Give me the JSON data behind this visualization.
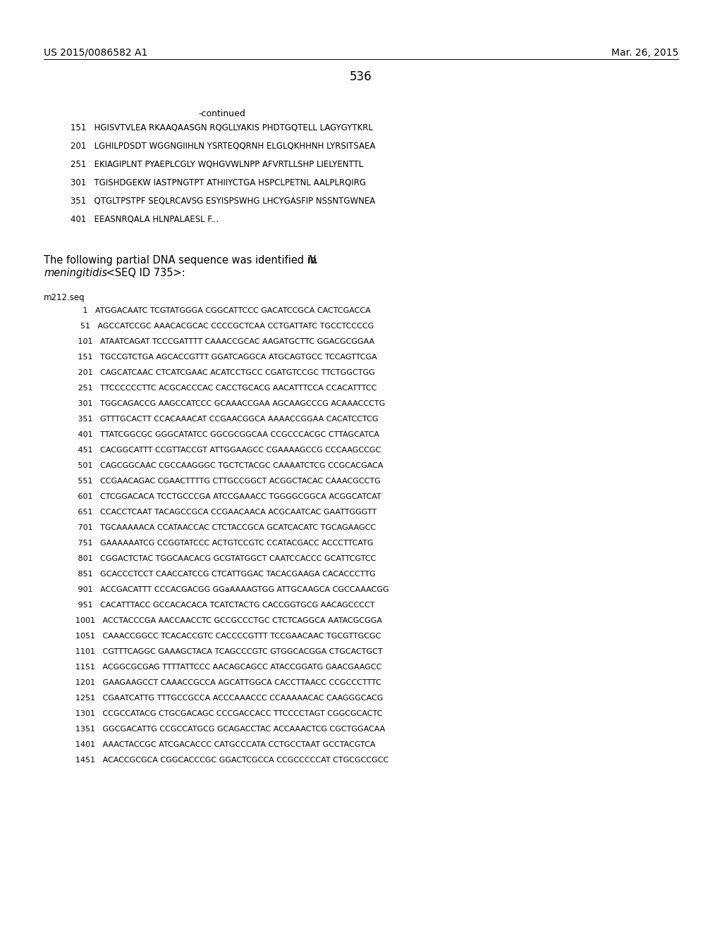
{
  "page_number": "536",
  "left_header": "US 2015/0086582 A1",
  "right_header": "Mar. 26, 2015",
  "background_color": "#ffffff",
  "text_color": "#000000",
  "continued_label": "-continued",
  "protein_lines": [
    "151   HGISVTVLEA RKAAQAASGN RQGLLYAKIS PHDTGQTELL LAGYGYTKRL",
    "201   LGHILPDSDT WGGNGIIHLN YSRTEQQRNH ELGLQKHHNH LYRSITSAEA",
    "251   EKIAGIPLNT PYAEPLCGLY WQHGVWLNPP AFVRTLLSHP LIELYENTTL",
    "301   TGISHDGEKW IASTPNGTPT ATHIIYCTGA HSPCLPETNL AALPLRQIRG",
    "351   QTGLTPSTPF SEQLRCAVSG ESYISPSWHG LHCYGASFIP NSSNTGWNEA",
    "401   EEASNRQALA HLNPALAESL F..."
  ],
  "intro_normal": "The following partial DNA sequence was identified in ",
  "intro_italic_N": "N.",
  "intro_italic_mening": "meningitidis",
  "intro_seq_id": " <SEQ ID 735>:",
  "seq_label": "m212.seq",
  "dna_lines": [
    "     1   ATGGACAATC TCGTATGGGA CGGCATTCCC GACATCCGCA CACTCGACCA",
    "    51   AGCCATCCGC AAACACGCAC CCCCGCTCAA CCTGATTATC TGCCTCCCCG",
    "   101   ATAATCAGAT TCCCGATTTT CAAACCGCAC AAGATGCTTC GGACGCGGAA",
    "   151   TGCCGTCTGA AGCACCGTTT GGATCAGGCA ATGCAGTGCC TCCAGTTCGA",
    "   201   CAGCATCAAC CTCATCGAAC ACATCCTGCC CGATGTCCGC TTCTGGCTGG",
    "   251   TTCCCCCCTTC ACGCACCCAC CACCTGCACG AACATTTCCA CCACATTTCC",
    "   301   TGGCAGACCG AAGCCATCCC GCAAACCGAA AGCAAGCCCG ACAAACCCTG",
    "   351   GTTTGCACTT CCACAAACAT CCGAACGGCA AAAACCGGAA CACATCCTCG",
    "   401   TTATCGGCGC GGGCATATCC GGCGCGGCAA CCGCCCACGC CTTAGCATCA",
    "   451   CACGGCATTT CCGTTACCGT ATTGGAAGCC CGAAAAGCCG CCCAAGCCGC",
    "   501   CAGCGGCAAC CGCCAAGGGC TGCTCTACGC CAAAATCTCG CCGCACGACA",
    "   551   CCGAACAGAC CGAACTTTTG CTTGCCGGCT ACGGCTACAC CAAACGCCTG",
    "   601   CTCGGACACA TCCTGCCCGA ATCCGAAACC TGGGGCGGCA ACGGCATCAT",
    "   651   CCACCTCAAT TACAGCCGCA CCGAACAACA ACGCAATCAC GAATTGGGTT",
    "   701   TGCAAAAACA CCATAACCAC CTCTACCGCA GCATCACATC TGCAGAAGCC",
    "   751   GAAAAAATCG CCGGTATCCC ACTGTCCGTC CCATACGACC ACCCTTCATG",
    "   801   CGGACTCTAC TGGCAACACG GCGTATGGCT CAATCCACCC GCATTCGTCC",
    "   851   GCACCCTCCT CAACCATCCG CTCATTGGAC TACACGAAGA CACACCCTTG",
    "   901   ACCGACATTT CCCACGACGG GGaAAAAGTGG ATTGCAAGCA CGCCAAACGG",
    "   951   CACATTTACC GCCACACACA TCATCTACTG CACCGGTGCG AACAGCCCCT",
    "  1001   ACCTACCCGA AACCAACCTC GCCGCCCTGC CTCTCAGGCA AATACGCGGA",
    "  1051   CAAACCGGCC TCACACCGTC CACCCCGTTT TCCGAACAAC TGCGTTGCGC",
    "  1101   CGTTTCAGGC GAAAGCTACA TCAGCCCGTC GTGGCACGGA CTGCACTGCT",
    "  1151   ACGGCGCGAG TTTTATTCCC AACAGCAGCC ATACCGGATG GAACGAAGCC",
    "  1201   GAAGAAGCCT CAAACCGCCA AGCATTGGCA CACCTTAACC CCGCCCTTTC",
    "  1251   CGAATCATTG TTTGCCGCCA ACCCAAACCC CCAAAAACAC CAAGGGCACG",
    "  1301   CCGCCATACG CTGCGACAGC CCCGACCACC TTCCCCТAGT CGGCGCACTC",
    "  1351   GGCGACATTG CCGCCATGCG GCAGACCTAC ACCAAACTCG CGCTGGACAA",
    "  1401   AAACTACCGC ATCGACACCC CATGCCCATA CCTGCCTAAT GCCTACGTCA",
    "  1451   ACACCGCGCA CGGCACCCGC GGACTCGCCA CCGCCCCCAT CTGCGCCGCC"
  ]
}
